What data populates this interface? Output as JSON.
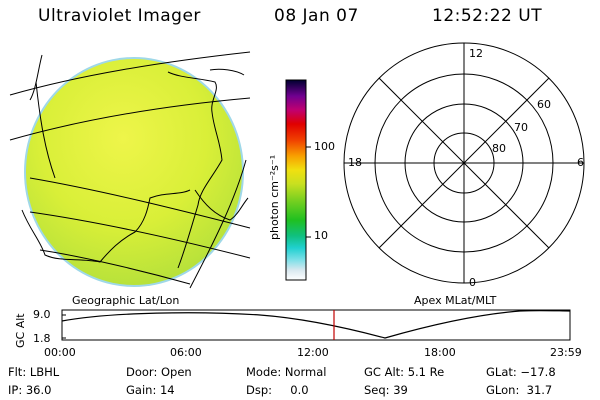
{
  "header": {
    "title": "Ultraviolet Imager",
    "date": "08 Jan 07",
    "time": "12:52:22 UT"
  },
  "image_panel": {
    "caption": "Geographic Lat/Lon"
  },
  "colorbar": {
    "label": "photon cm⁻²s⁻¹",
    "tick_high": "100",
    "tick_low": "10"
  },
  "polar_plot": {
    "caption": "Apex MLat/MLT",
    "mlt_top": "12",
    "mlt_bottom": "0",
    "mlt_left": "18",
    "mlt_right": "6",
    "lat_60": "60",
    "lat_70": "70",
    "lat_80": "80"
  },
  "altitude_plot": {
    "ylabel": "GC Alt",
    "tick_top": "9.0",
    "tick_bottom": "1.8",
    "x_ticks": [
      "00:00",
      "06:00",
      "12:00",
      "18:00",
      "23:59"
    ],
    "current_time_marker": "12:52"
  },
  "status": {
    "flt": "Flt: LBHL",
    "ip": "IP: 36.0",
    "door": "Door: Open",
    "gain": "Gain: 14",
    "mode": "Mode: Normal",
    "dsp": "Dsp:     0.0",
    "gcalt": "GC Alt: 5.1 Re",
    "seq": "Seq: 39",
    "glat": "GLat: −17.8",
    "glon": "GLon:  31.7"
  },
  "colors": {
    "earth_fill": "#d8f03a",
    "marker_line": "#c00000"
  }
}
